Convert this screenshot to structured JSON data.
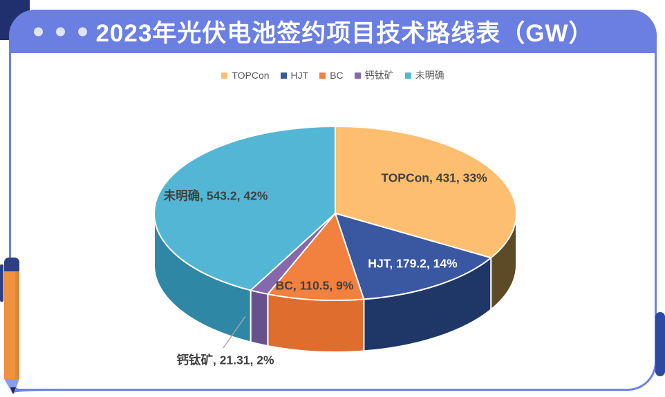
{
  "header": {
    "title": "2023年光伏电池签约项目技术路线表（GW）"
  },
  "chart_data": {
    "type": "pie",
    "style": "3d",
    "title": "2023年光伏电池签约项目技术路线表（GW）",
    "unit": "GW",
    "start_angle_deg": 0,
    "direction": "clockwise",
    "legend_position": "top",
    "categories": [
      "TOPCon",
      "HJT",
      "BC",
      "钙钛矿",
      "未明确"
    ],
    "values": [
      431,
      179.2,
      110.5,
      21.31,
      543.2
    ],
    "percents": [
      33,
      14,
      9,
      2,
      42
    ],
    "slice_labels": [
      "TOPCon, 431, 33%",
      "HJT, 179.2, 14%",
      "BC, 110.5, 9%",
      "钙钛矿, 21.31, 2%",
      "未明确, 543.2, 42%"
    ],
    "colors": [
      "#fdbf6f",
      "#3a57a1",
      "#f2803f",
      "#8668ad",
      "#54b6d5"
    ],
    "side_colors": [
      "#5d4a26",
      "#1e3766",
      "#df6e2e",
      "#66518e",
      "#2e87a4"
    ],
    "label_colors": [
      "#404040",
      "#ffffff",
      "#404040",
      "#404040",
      "#404040"
    ]
  },
  "accents": {
    "header_bg": "#6b7fe3",
    "card_border": "#6d81e6",
    "corner_navy": "#20306f",
    "tab_navy": "#2c4aa0",
    "dot_color": "#dde5f9",
    "legend_text": "#595959",
    "leader_line": "#a6a6a6",
    "pen_body": "#f0913f",
    "pen_cap": "#2a3f85",
    "pen_nib": "#8b9cf0",
    "pen_tip": "#1f2c60"
  }
}
